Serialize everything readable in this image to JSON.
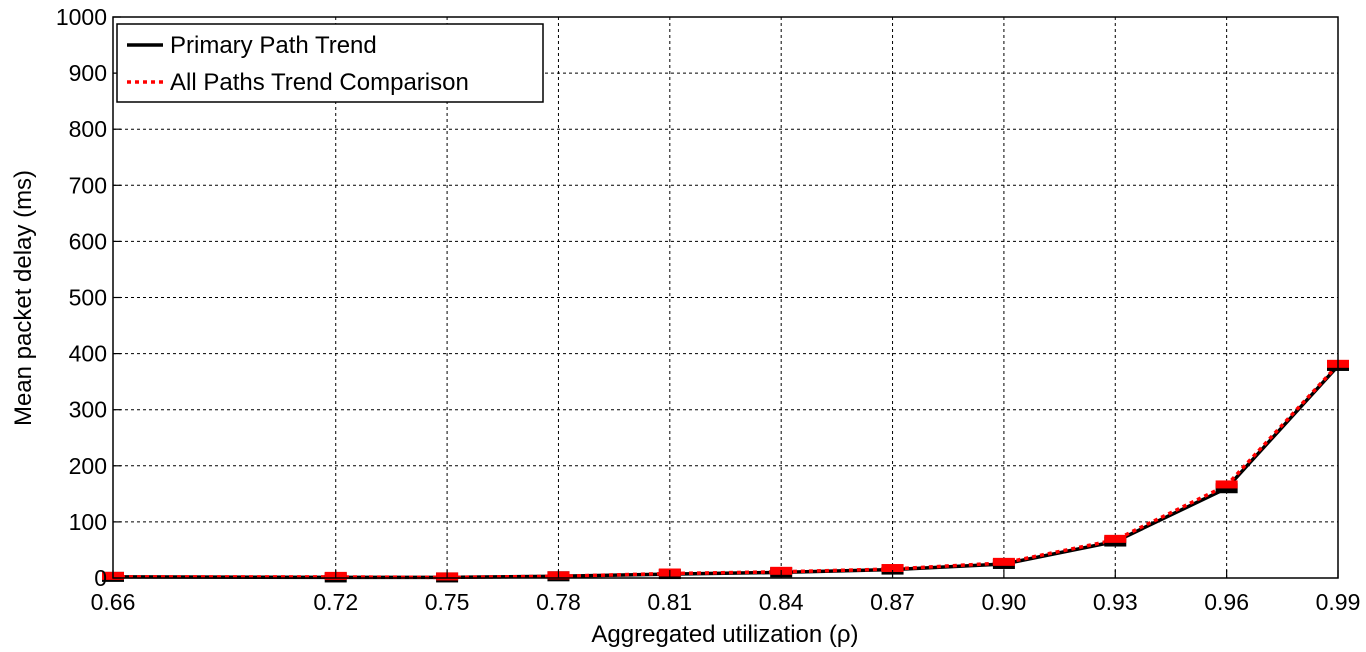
{
  "chart_data": {
    "type": "line",
    "title": "",
    "xlabel": "Aggregated utilization (ρ)",
    "ylabel": "Mean packet delay (ms)",
    "xlim": [
      0.66,
      0.99
    ],
    "ylim": [
      0,
      1000
    ],
    "xticks": [
      0.66,
      0.72,
      0.75,
      0.78,
      0.81,
      0.84,
      0.87,
      0.9,
      0.93,
      0.96,
      0.99
    ],
    "xtick_labels": [
      "0.66",
      "0.72",
      "0.75",
      "0.78",
      "0.81",
      "0.84",
      "0.87",
      "0.90",
      "0.93",
      "0.96",
      "0.99"
    ],
    "yticks": [
      0,
      100,
      200,
      300,
      400,
      500,
      600,
      700,
      800,
      900,
      1000
    ],
    "ytick_labels": [
      "0",
      "100",
      "200",
      "300",
      "400",
      "500",
      "600",
      "700",
      "800",
      "900",
      "1000"
    ],
    "grid": true,
    "legend_position": "top-left",
    "series": [
      {
        "name": "Primary Path Trend",
        "color": "#000000",
        "style": "solid",
        "x": [
          0.66,
          0.72,
          0.75,
          0.78,
          0.81,
          0.84,
          0.87,
          0.9,
          0.93,
          0.96,
          0.99
        ],
        "y": [
          2,
          1,
          1,
          3,
          7,
          10,
          15,
          25,
          65,
          160,
          378
        ]
      },
      {
        "name": "All Paths Trend Comparison",
        "color": "#ff0000",
        "style": "dotted",
        "x": [
          0.66,
          0.72,
          0.75,
          0.78,
          0.81,
          0.84,
          0.87,
          0.9,
          0.93,
          0.96,
          0.99
        ],
        "y": [
          2,
          2,
          1,
          3,
          8,
          11,
          16,
          27,
          68,
          165,
          380
        ]
      }
    ]
  }
}
